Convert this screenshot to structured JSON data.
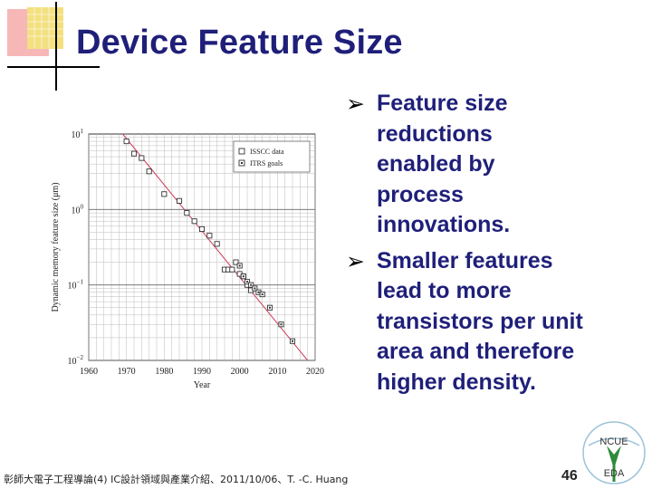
{
  "slide": {
    "title": "Device Feature Size",
    "page_number": "46",
    "footer": "彰師大電子工程導論(4) IC設計領域與產業介紹、2011/10/06、T. -C. Huang",
    "logo_text": [
      "NCUE",
      "EDA"
    ]
  },
  "bullets": [
    {
      "lines": [
        "Feature size",
        "reductions",
        "enabled by",
        "process",
        "innovations."
      ]
    },
    {
      "lines": [
        "Smaller features",
        "lead to more",
        "transistors per unit",
        "area and therefore",
        "higher density."
      ]
    }
  ],
  "chart_data": {
    "type": "scatter",
    "xlabel": "Year",
    "ylabel": "Dynamic memory feature size (μm)",
    "x_ticks": [
      "1960",
      "1970",
      "1980",
      "1990",
      "2000",
      "2010",
      "2020"
    ],
    "y_ticks": [
      {
        "base": "10",
        "exp": "1",
        "value": 10
      },
      {
        "base": "10",
        "exp": "0",
        "value": 1
      },
      {
        "base": "10",
        "exp": "−1",
        "value": 0.1
      },
      {
        "base": "10",
        "exp": "−2",
        "value": 0.01
      }
    ],
    "xlim": [
      1960,
      2020
    ],
    "ylim": [
      0.01,
      10
    ],
    "y_scale": "log",
    "grid": true,
    "legend": [
      "ISSCC data",
      "ITRS goals"
    ],
    "legend_position": "top-right",
    "series": [
      {
        "name": "ISSCC data",
        "points": [
          [
            1970,
            8
          ],
          [
            1972,
            5.5
          ],
          [
            1974,
            4.8
          ],
          [
            1976,
            3.2
          ],
          [
            1980,
            1.6
          ],
          [
            1984,
            1.3
          ],
          [
            1986,
            0.9
          ],
          [
            1988,
            0.7
          ],
          [
            1990,
            0.55
          ],
          [
            1992,
            0.45
          ],
          [
            1994,
            0.35
          ],
          [
            1996,
            0.16
          ],
          [
            1997,
            0.16
          ],
          [
            1998,
            0.16
          ],
          [
            1999,
            0.2
          ],
          [
            2000,
            0.14
          ],
          [
            2001,
            0.13
          ],
          [
            2002,
            0.1
          ],
          [
            2003,
            0.085
          ]
        ]
      },
      {
        "name": "ITRS goals",
        "points": [
          [
            2000,
            0.18
          ],
          [
            2001,
            0.13
          ],
          [
            2002,
            0.11
          ],
          [
            2003,
            0.1
          ],
          [
            2004,
            0.09
          ],
          [
            2005,
            0.08
          ],
          [
            2006,
            0.075
          ],
          [
            2008,
            0.05
          ],
          [
            2011,
            0.03
          ],
          [
            2014,
            0.018
          ]
        ]
      }
    ],
    "trend_line": [
      [
        1969,
        10
      ],
      [
        2018,
        0.01
      ]
    ]
  }
}
